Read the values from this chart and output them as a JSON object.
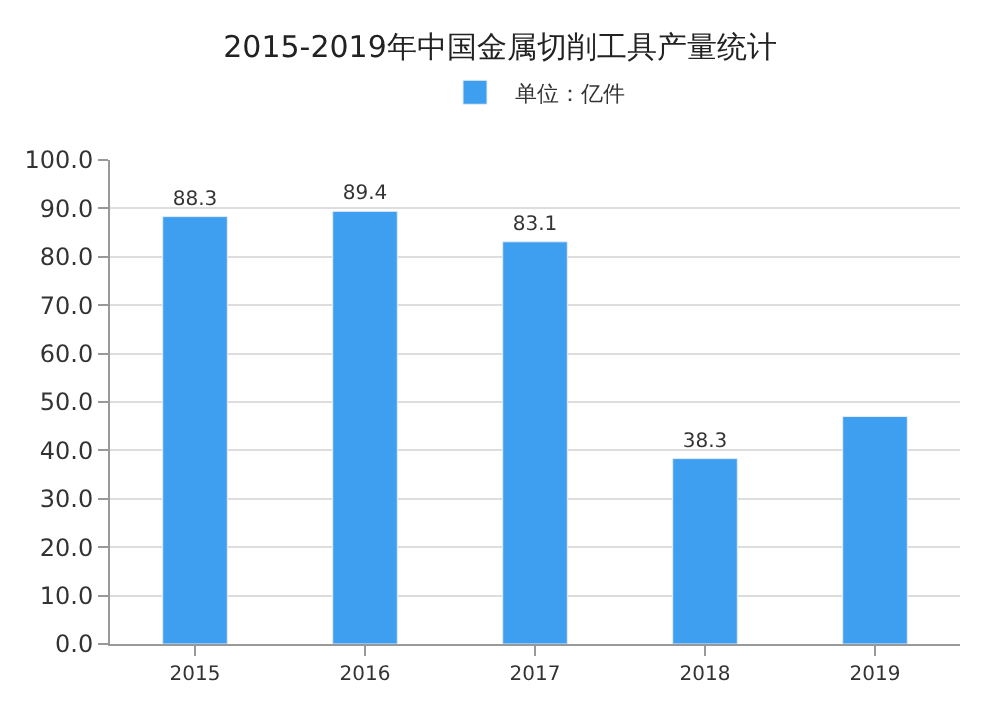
{
  "chart_data": {
    "type": "bar",
    "title": "2015-2019年中国金属切削工具产量统计",
    "categories": [
      "2015",
      "2016",
      "2017",
      "2018",
      "2019"
    ],
    "series": [
      {
        "name": "单位：亿件",
        "color": "#3e9ff0",
        "values": [
          88.3,
          89.4,
          83.1,
          38.3,
          47
        ],
        "value_labels": [
          "88.3",
          "89.4",
          "83.1",
          "38.3",
          null
        ]
      }
    ],
    "ylim": [
      0,
      100
    ],
    "yticks": [
      {
        "value": 0,
        "label": "0.0"
      },
      {
        "value": 10,
        "label": "10.0"
      },
      {
        "value": 20,
        "label": "20.0"
      },
      {
        "value": 30,
        "label": "30.0"
      },
      {
        "value": 40,
        "label": "40.0"
      },
      {
        "value": 50,
        "label": "50.0"
      },
      {
        "value": 60,
        "label": "60.0"
      },
      {
        "value": 70,
        "label": "70.0"
      },
      {
        "value": 80,
        "label": "80.0"
      },
      {
        "value": 90,
        "label": "90.0"
      },
      {
        "value": 100,
        "label": "100.0"
      }
    ],
    "grid": "y",
    "legend": "top"
  }
}
